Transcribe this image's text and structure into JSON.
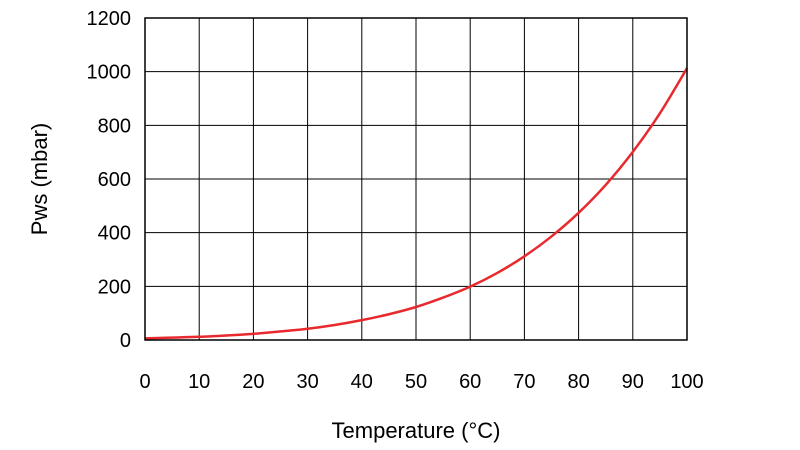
{
  "chart_data": {
    "type": "line",
    "xlabel": "Temperature (°C)",
    "ylabel": "Pws (mbar)",
    "xlim": [
      0,
      100
    ],
    "ylim": [
      0,
      1200
    ],
    "x_ticks": [
      0,
      10,
      20,
      30,
      40,
      50,
      60,
      70,
      80,
      90,
      100
    ],
    "y_ticks": [
      0,
      200,
      400,
      600,
      800,
      1000,
      1200
    ],
    "grid": true,
    "legend": "none",
    "series": [
      {
        "color": "#e8292e",
        "x": [
          0,
          5,
          10,
          15,
          20,
          25,
          30,
          35,
          40,
          45,
          50,
          55,
          60,
          65,
          70,
          75,
          80,
          85,
          90,
          95,
          100
        ],
        "y": [
          6,
          9,
          12,
          17,
          23,
          32,
          42,
          56,
          74,
          96,
          123,
          158,
          199,
          250,
          312,
          386,
          474,
          578,
          701,
          845,
          1013
        ]
      }
    ]
  }
}
